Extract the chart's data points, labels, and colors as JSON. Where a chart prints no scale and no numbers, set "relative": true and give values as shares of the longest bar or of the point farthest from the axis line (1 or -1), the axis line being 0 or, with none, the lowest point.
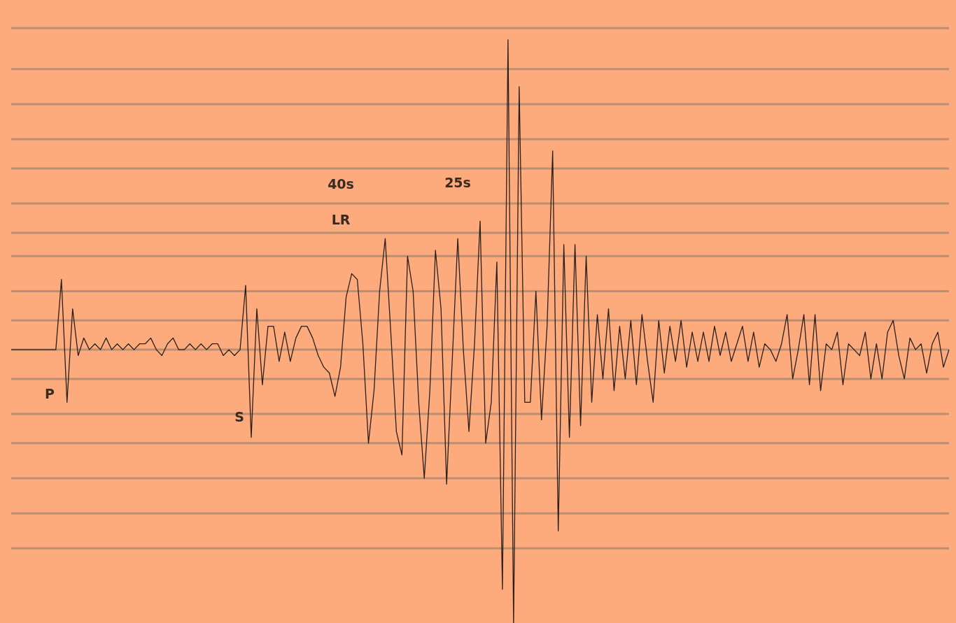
{
  "chart_data": {
    "type": "line",
    "relative": true,
    "categories": [
      null,
      null,
      null,
      null,
      null,
      null,
      null,
      null,
      null,
      null,
      null,
      null,
      null,
      null,
      null,
      null,
      null,
      null,
      null,
      null,
      null,
      null,
      null,
      null,
      null,
      null,
      null,
      null,
      null,
      null,
      null,
      null,
      null,
      null,
      null,
      null,
      null,
      null,
      null,
      null,
      null,
      null,
      null,
      null,
      null,
      null,
      null,
      null,
      null,
      null,
      null,
      null,
      null,
      null,
      null,
      null,
      null,
      null,
      null,
      null,
      null,
      null,
      null,
      null,
      null,
      null,
      null,
      null,
      null,
      null,
      null,
      null,
      null,
      null,
      null,
      null,
      null,
      null,
      null,
      null,
      null,
      null,
      null,
      null,
      null,
      null,
      null,
      null,
      null,
      null,
      null,
      null,
      null,
      null,
      null,
      null,
      null,
      null,
      null,
      null,
      null,
      null,
      null,
      null,
      null,
      null,
      null,
      null,
      null,
      null,
      null,
      null,
      null,
      null,
      null,
      null,
      null,
      null,
      null,
      null,
      null,
      null,
      null,
      null,
      null,
      null,
      null,
      null,
      null,
      null,
      null,
      null,
      null,
      null,
      null,
      null,
      null,
      null,
      null,
      null,
      null,
      null,
      null,
      null,
      null,
      null,
      null,
      null,
      null,
      null,
      null,
      null,
      null,
      null,
      null,
      null,
      null,
      null,
      null,
      null,
      null,
      null,
      null,
      null,
      null,
      null,
      null,
      null,
      null
    ],
    "series": [
      {
        "color": "#2a1f1a",
        "values": [
          0.47,
          0.47,
          0.47,
          0.47,
          0.47,
          0.47,
          0.47,
          0.47,
          0.47,
          0.59,
          0.38,
          0.54,
          0.46,
          0.49,
          0.47,
          0.48,
          0.47,
          0.49,
          0.47,
          0.48,
          0.47,
          0.48,
          0.47,
          0.48,
          0.48,
          0.49,
          0.47,
          0.46,
          0.48,
          0.49,
          0.47,
          0.47,
          0.48,
          0.47,
          0.48,
          0.47,
          0.48,
          0.48,
          0.46,
          0.47,
          0.46,
          0.47,
          0.58,
          0.32,
          0.54,
          0.41,
          0.51,
          0.51,
          0.45,
          0.5,
          0.45,
          0.49,
          0.51,
          0.51,
          0.49,
          0.46,
          0.44,
          0.43,
          0.39,
          0.44,
          0.56,
          0.6,
          0.59,
          0.48,
          0.31,
          0.4,
          0.57,
          0.66,
          0.5,
          0.33,
          0.29,
          0.63,
          0.57,
          0.38,
          0.25,
          0.4,
          0.64,
          0.54,
          0.24,
          0.45,
          0.66,
          0.47,
          0.33,
          0.48,
          0.69,
          0.31,
          0.38,
          0.62,
          0.06,
          1,
          0,
          0.92,
          0.38,
          0.38,
          0.57,
          0.35,
          0.51,
          0.81,
          0.16,
          0.65,
          0.32,
          0.65,
          0.34,
          0.63,
          0.38,
          0.53,
          0.42,
          0.54,
          0.4,
          0.51,
          0.42,
          0.52,
          0.41,
          0.53,
          0.45,
          0.38,
          0.52,
          0.43,
          0.51,
          0.45,
          0.52,
          0.44,
          0.5,
          0.45,
          0.5,
          0.45,
          0.51,
          0.46,
          0.5,
          0.45,
          0.48,
          0.51,
          0.45,
          0.5,
          0.44,
          0.48,
          0.47,
          0.45,
          0.48,
          0.53,
          0.42,
          0.47,
          0.53,
          0.41,
          0.53,
          0.4,
          0.48,
          0.47,
          0.5,
          0.41,
          0.48,
          0.47,
          0.46,
          0.5,
          0.42,
          0.48,
          0.42,
          0.5,
          0.52,
          0.46,
          0.42,
          0.49,
          0.47,
          0.48,
          0.43,
          0.48,
          0.5,
          0.44,
          0.47
        ]
      }
    ],
    "ref_lines": [
      {
        "axis": "y",
        "value": 1.02,
        "color": "#b08a72"
      },
      {
        "axis": "y",
        "value": 0.95,
        "color": "#b08a72"
      },
      {
        "axis": "y",
        "value": 0.89,
        "color": "#b08a72"
      },
      {
        "axis": "y",
        "value": 0.83,
        "color": "#b08a72"
      },
      {
        "axis": "y",
        "value": 0.78,
        "color": "#b08a72"
      },
      {
        "axis": "y",
        "value": 0.72,
        "color": "#b08a72"
      },
      {
        "axis": "y",
        "value": 0.67,
        "color": "#b08a72"
      },
      {
        "axis": "y",
        "value": 0.63,
        "color": "#b08a72"
      },
      {
        "axis": "y",
        "value": 0.57,
        "color": "#b08a72"
      },
      {
        "axis": "y",
        "value": 0.52,
        "color": "#b08a72"
      },
      {
        "axis": "y",
        "value": 0.47,
        "color": "#b08a72"
      },
      {
        "axis": "y",
        "value": 0.42,
        "color": "#b08a72"
      },
      {
        "axis": "y",
        "value": 0.36,
        "color": "#b08a72"
      },
      {
        "axis": "y",
        "value": 0.31,
        "color": "#b08a72"
      },
      {
        "axis": "y",
        "value": 0.25,
        "color": "#b08a72"
      },
      {
        "axis": "y",
        "value": 0.19,
        "color": "#b08a72"
      },
      {
        "axis": "y",
        "value": 0.13,
        "color": "#b08a72"
      }
    ],
    "annotations": [
      "P",
      "S",
      "40s",
      "LR",
      "25s"
    ],
    "legend": false
  }
}
